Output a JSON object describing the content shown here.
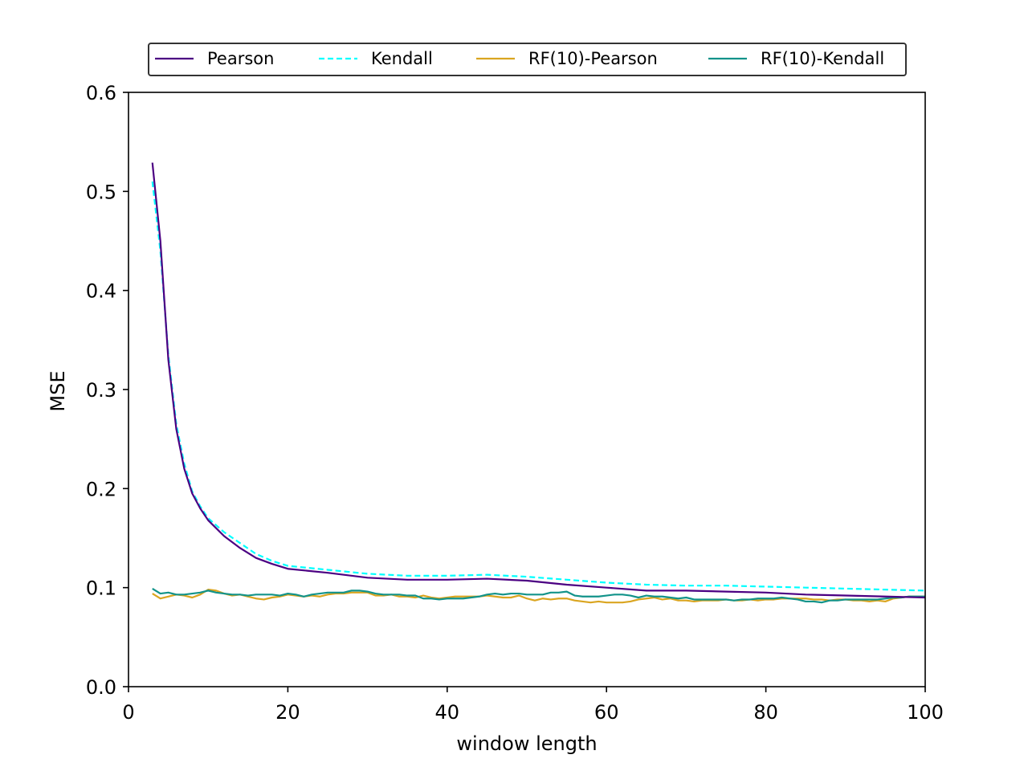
{
  "chart_data": {
    "type": "line",
    "title": "",
    "xlabel": "window length",
    "ylabel": "MSE",
    "xlim": [
      0,
      100
    ],
    "ylim": [
      0.0,
      0.6
    ],
    "xticks": [
      "0",
      "20",
      "40",
      "60",
      "80",
      "100"
    ],
    "yticks": [
      "0.0",
      "0.1",
      "0.2",
      "0.3",
      "0.4",
      "0.5",
      "0.6"
    ],
    "grid": false,
    "legend_position": "top-center, above plot, one row",
    "series": [
      {
        "name": "Pearson",
        "color": "#4b0082",
        "style": "solid",
        "x": [
          3,
          4,
          5,
          6,
          7,
          8,
          9,
          10,
          12,
          14,
          16,
          18,
          20,
          25,
          30,
          35,
          40,
          45,
          50,
          55,
          60,
          65,
          70,
          75,
          80,
          85,
          90,
          95,
          100
        ],
        "y": [
          0.529,
          0.45,
          0.33,
          0.26,
          0.22,
          0.195,
          0.18,
          0.168,
          0.152,
          0.14,
          0.13,
          0.124,
          0.119,
          0.115,
          0.11,
          0.108,
          0.108,
          0.109,
          0.107,
          0.103,
          0.1,
          0.097,
          0.097,
          0.096,
          0.095,
          0.093,
          0.092,
          0.091,
          0.09
        ]
      },
      {
        "name": "Kendall",
        "color": "#00ffff",
        "style": "dashed",
        "x": [
          3,
          4,
          5,
          6,
          7,
          8,
          9,
          10,
          12,
          14,
          16,
          18,
          20,
          25,
          30,
          35,
          40,
          45,
          50,
          55,
          60,
          65,
          70,
          75,
          80,
          85,
          90,
          95,
          100
        ],
        "y": [
          0.51,
          0.44,
          0.335,
          0.265,
          0.225,
          0.197,
          0.182,
          0.17,
          0.156,
          0.145,
          0.134,
          0.127,
          0.122,
          0.118,
          0.114,
          0.112,
          0.112,
          0.113,
          0.111,
          0.108,
          0.105,
          0.103,
          0.102,
          0.102,
          0.101,
          0.1,
          0.099,
          0.098,
          0.097
        ]
      },
      {
        "name": "RF(10)-Pearson",
        "color": "#daa520",
        "style": "solid",
        "x": [
          3,
          4,
          5,
          6,
          7,
          8,
          9,
          10,
          11,
          12,
          13,
          14,
          15,
          16,
          17,
          18,
          19,
          20,
          21,
          22,
          23,
          24,
          25,
          26,
          27,
          28,
          29,
          30,
          31,
          32,
          33,
          34,
          35,
          36,
          37,
          38,
          39,
          40,
          41,
          42,
          43,
          44,
          45,
          46,
          47,
          48,
          49,
          50,
          51,
          52,
          53,
          54,
          55,
          56,
          57,
          58,
          59,
          60,
          61,
          62,
          63,
          64,
          65,
          66,
          67,
          68,
          69,
          70,
          71,
          72,
          73,
          74,
          75,
          76,
          77,
          78,
          79,
          80,
          81,
          82,
          83,
          84,
          85,
          86,
          87,
          88,
          89,
          90,
          91,
          92,
          93,
          94,
          95,
          96,
          97,
          98,
          99,
          100
        ],
        "y": [
          0.094,
          0.089,
          0.091,
          0.093,
          0.092,
          0.09,
          0.093,
          0.098,
          0.097,
          0.094,
          0.092,
          0.093,
          0.091,
          0.089,
          0.088,
          0.09,
          0.091,
          0.093,
          0.092,
          0.091,
          0.092,
          0.091,
          0.093,
          0.094,
          0.094,
          0.095,
          0.095,
          0.095,
          0.092,
          0.092,
          0.093,
          0.091,
          0.091,
          0.09,
          0.092,
          0.09,
          0.089,
          0.09,
          0.091,
          0.091,
          0.091,
          0.091,
          0.092,
          0.091,
          0.09,
          0.09,
          0.092,
          0.089,
          0.087,
          0.089,
          0.088,
          0.089,
          0.089,
          0.087,
          0.086,
          0.085,
          0.086,
          0.085,
          0.085,
          0.085,
          0.086,
          0.088,
          0.089,
          0.09,
          0.088,
          0.089,
          0.087,
          0.087,
          0.086,
          0.087,
          0.087,
          0.087,
          0.088,
          0.087,
          0.087,
          0.088,
          0.087,
          0.088,
          0.088,
          0.089,
          0.089,
          0.089,
          0.089,
          0.088,
          0.088,
          0.087,
          0.088,
          0.088,
          0.087,
          0.087,
          0.086,
          0.087,
          0.086,
          0.089,
          0.09,
          0.091,
          0.091,
          0.091
        ]
      },
      {
        "name": "RF(10)-Kendall",
        "color": "#12938a",
        "style": "solid",
        "x": [
          3,
          4,
          5,
          6,
          7,
          8,
          9,
          10,
          11,
          12,
          13,
          14,
          15,
          16,
          17,
          18,
          19,
          20,
          21,
          22,
          23,
          24,
          25,
          26,
          27,
          28,
          29,
          30,
          31,
          32,
          33,
          34,
          35,
          36,
          37,
          38,
          39,
          40,
          41,
          42,
          43,
          44,
          45,
          46,
          47,
          48,
          49,
          50,
          51,
          52,
          53,
          54,
          55,
          56,
          57,
          58,
          59,
          60,
          61,
          62,
          63,
          64,
          65,
          66,
          67,
          68,
          69,
          70,
          71,
          72,
          73,
          74,
          75,
          76,
          77,
          78,
          79,
          80,
          81,
          82,
          83,
          84,
          85,
          86,
          87,
          88,
          89,
          90,
          91,
          92,
          93,
          94,
          95,
          96,
          97,
          98,
          99,
          100
        ],
        "y": [
          0.099,
          0.094,
          0.095,
          0.093,
          0.093,
          0.094,
          0.095,
          0.097,
          0.095,
          0.094,
          0.093,
          0.093,
          0.092,
          0.093,
          0.093,
          0.093,
          0.092,
          0.094,
          0.093,
          0.091,
          0.093,
          0.094,
          0.095,
          0.095,
          0.095,
          0.097,
          0.097,
          0.096,
          0.094,
          0.093,
          0.093,
          0.093,
          0.092,
          0.092,
          0.089,
          0.089,
          0.088,
          0.089,
          0.089,
          0.089,
          0.09,
          0.091,
          0.093,
          0.094,
          0.093,
          0.094,
          0.094,
          0.093,
          0.093,
          0.093,
          0.095,
          0.095,
          0.096,
          0.092,
          0.091,
          0.091,
          0.091,
          0.092,
          0.093,
          0.093,
          0.092,
          0.09,
          0.092,
          0.091,
          0.091,
          0.09,
          0.089,
          0.09,
          0.088,
          0.088,
          0.088,
          0.088,
          0.088,
          0.087,
          0.088,
          0.088,
          0.089,
          0.089,
          0.089,
          0.09,
          0.089,
          0.088,
          0.086,
          0.086,
          0.085,
          0.087,
          0.087,
          0.088,
          0.088,
          0.088,
          0.088,
          0.088,
          0.089,
          0.09,
          0.09,
          0.091,
          0.091,
          0.091
        ]
      }
    ]
  }
}
